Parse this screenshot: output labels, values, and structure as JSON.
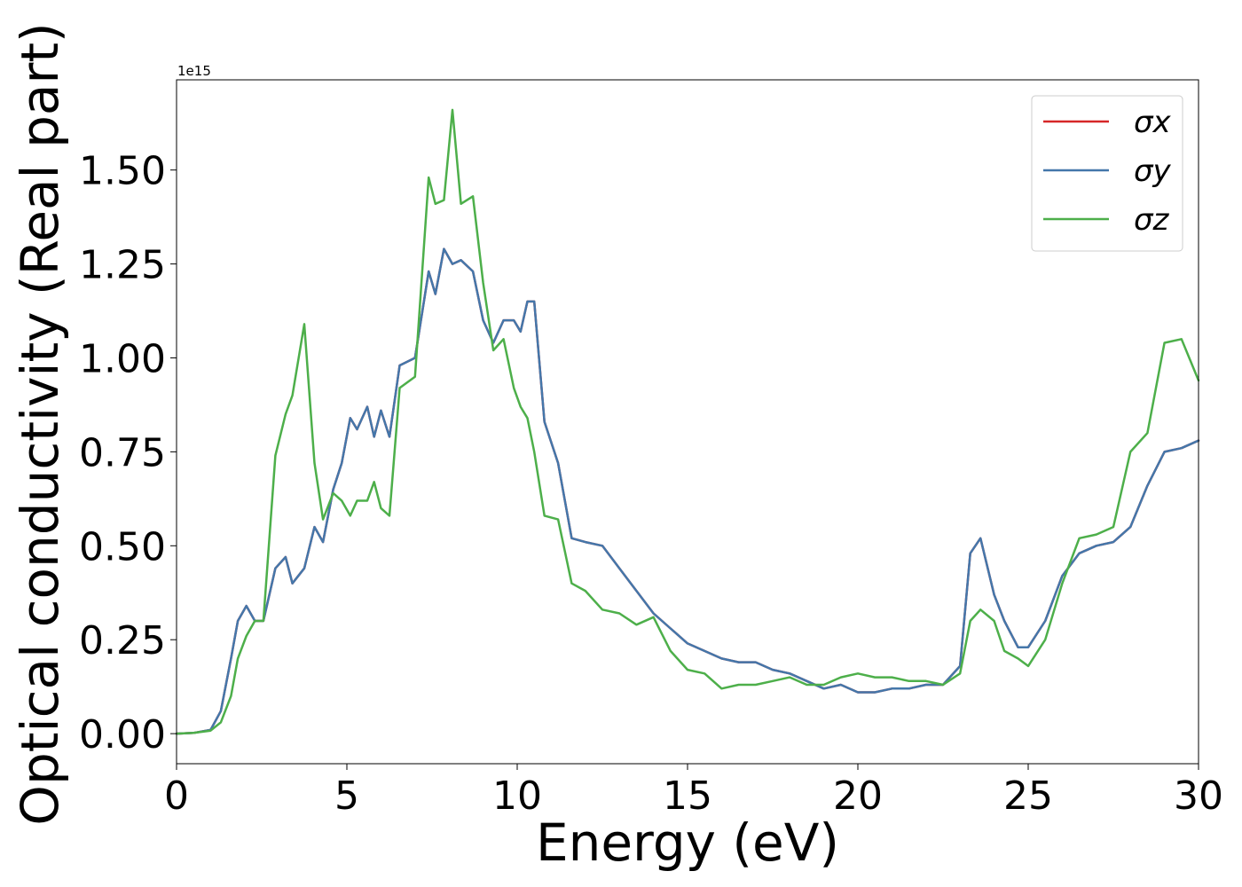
{
  "chart_data": {
    "type": "line",
    "xlabel": "Energy (eV)",
    "ylabel": "Optical conductivity (Real part)",
    "offset_text": "1e15",
    "xlim": [
      0,
      30
    ],
    "ylim": [
      -0.08,
      1.74
    ],
    "x_ticks": [
      "0",
      "5",
      "10",
      "15",
      "20",
      "25",
      "30"
    ],
    "y_ticks": [
      "0.00",
      "0.25",
      "0.50",
      "0.75",
      "1.00",
      "1.25",
      "1.50"
    ],
    "grid": false,
    "legend_position": "top-right",
    "x": [
      0,
      0.5,
      1,
      1.3,
      1.6,
      1.8,
      2.05,
      2.3,
      2.55,
      2.9,
      3.2,
      3.4,
      3.75,
      4.05,
      4.3,
      4.6,
      4.85,
      5.1,
      5.3,
      5.6,
      5.8,
      6.0,
      6.25,
      6.55,
      7.0,
      7.4,
      7.6,
      7.85,
      8.1,
      8.35,
      8.7,
      9.0,
      9.3,
      9.6,
      9.9,
      10.1,
      10.3,
      10.5,
      10.8,
      11.2,
      11.6,
      12.0,
      12.5,
      13.0,
      13.5,
      14.0,
      14.5,
      15.0,
      15.5,
      16.0,
      16.5,
      17.0,
      17.5,
      18.0,
      18.5,
      19.0,
      19.5,
      20.0,
      20.5,
      21.0,
      21.5,
      22.0,
      22.5,
      23.0,
      23.3,
      23.6,
      24.0,
      24.3,
      24.7,
      25.0,
      25.5,
      26.0,
      26.5,
      27.0,
      27.5,
      28.0,
      28.5,
      29.0,
      29.5,
      30.0
    ],
    "series": [
      {
        "name": "σx",
        "color": "#d62728",
        "values": [
          0,
          0.002,
          0.01,
          0.06,
          0.2,
          0.3,
          0.34,
          0.3,
          0.3,
          0.44,
          0.47,
          0.4,
          0.44,
          0.55,
          0.51,
          0.65,
          0.72,
          0.84,
          0.81,
          0.87,
          0.79,
          0.86,
          0.79,
          0.98,
          1.0,
          1.23,
          1.17,
          1.29,
          1.25,
          1.26,
          1.23,
          1.1,
          1.04,
          1.1,
          1.1,
          1.07,
          1.15,
          1.15,
          0.83,
          0.72,
          0.52,
          0.51,
          0.5,
          0.44,
          0.38,
          0.32,
          0.28,
          0.24,
          0.22,
          0.2,
          0.19,
          0.19,
          0.17,
          0.16,
          0.14,
          0.12,
          0.13,
          0.11,
          0.11,
          0.12,
          0.12,
          0.13,
          0.13,
          0.18,
          0.48,
          0.52,
          0.37,
          0.3,
          0.23,
          0.23,
          0.3,
          0.42,
          0.48,
          0.5,
          0.51,
          0.55,
          0.66,
          0.75,
          0.76,
          0.78
        ]
      },
      {
        "name": "σy",
        "color": "#4477aa",
        "values": [
          0,
          0.002,
          0.01,
          0.06,
          0.2,
          0.3,
          0.34,
          0.3,
          0.3,
          0.44,
          0.47,
          0.4,
          0.44,
          0.55,
          0.51,
          0.65,
          0.72,
          0.84,
          0.81,
          0.87,
          0.79,
          0.86,
          0.79,
          0.98,
          1.0,
          1.23,
          1.17,
          1.29,
          1.25,
          1.26,
          1.23,
          1.1,
          1.04,
          1.1,
          1.1,
          1.07,
          1.15,
          1.15,
          0.83,
          0.72,
          0.52,
          0.51,
          0.5,
          0.44,
          0.38,
          0.32,
          0.28,
          0.24,
          0.22,
          0.2,
          0.19,
          0.19,
          0.17,
          0.16,
          0.14,
          0.12,
          0.13,
          0.11,
          0.11,
          0.12,
          0.12,
          0.13,
          0.13,
          0.18,
          0.48,
          0.52,
          0.37,
          0.3,
          0.23,
          0.23,
          0.3,
          0.42,
          0.48,
          0.5,
          0.51,
          0.55,
          0.66,
          0.75,
          0.76,
          0.78
        ]
      },
      {
        "name": "σz",
        "color": "#4daf4a",
        "values": [
          0,
          0.002,
          0.008,
          0.03,
          0.1,
          0.2,
          0.26,
          0.3,
          0.3,
          0.74,
          0.85,
          0.9,
          1.09,
          0.72,
          0.57,
          0.64,
          0.62,
          0.58,
          0.62,
          0.62,
          0.67,
          0.6,
          0.58,
          0.92,
          0.95,
          1.48,
          1.41,
          1.42,
          1.66,
          1.41,
          1.43,
          1.2,
          1.02,
          1.05,
          0.92,
          0.87,
          0.84,
          0.75,
          0.58,
          0.57,
          0.4,
          0.38,
          0.33,
          0.32,
          0.29,
          0.31,
          0.22,
          0.17,
          0.16,
          0.12,
          0.13,
          0.13,
          0.14,
          0.15,
          0.13,
          0.13,
          0.15,
          0.16,
          0.15,
          0.15,
          0.14,
          0.14,
          0.13,
          0.16,
          0.3,
          0.33,
          0.3,
          0.22,
          0.2,
          0.18,
          0.25,
          0.4,
          0.52,
          0.53,
          0.55,
          0.75,
          0.8,
          1.04,
          1.05,
          0.94
        ]
      }
    ]
  }
}
